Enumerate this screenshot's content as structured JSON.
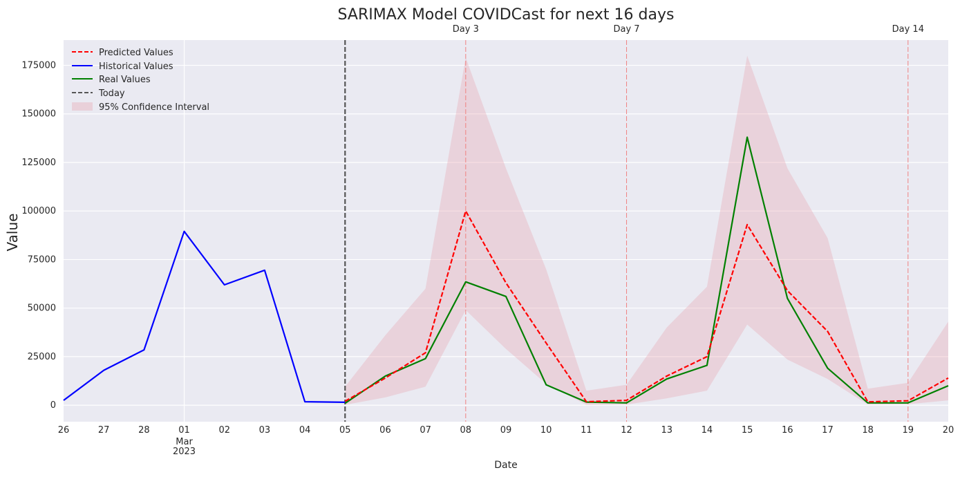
{
  "chart_data": {
    "type": "line",
    "title": "SARIMAX Model COVIDCast for next 16 days",
    "xlabel": "Date",
    "ylabel": "Value",
    "x_ticks": [
      "26",
      "27",
      "28",
      "01",
      "02",
      "03",
      "04",
      "05",
      "06",
      "07",
      "08",
      "09",
      "10",
      "11",
      "12",
      "13",
      "14",
      "15",
      "16",
      "17",
      "18",
      "19",
      "20"
    ],
    "x_tick_sublabel": {
      "index": 3,
      "lines": [
        "Mar",
        "2023"
      ]
    },
    "ylim": [
      -8500,
      188000
    ],
    "y_ticks": [
      0,
      25000,
      50000,
      75000,
      100000,
      125000,
      150000,
      175000
    ],
    "historical": {
      "name": "Historical Values",
      "color": "#0000ff",
      "x": [
        0,
        1,
        2,
        3,
        4,
        5,
        6,
        7
      ],
      "y": [
        2500,
        18000,
        28500,
        89500,
        62000,
        69500,
        1800,
        1500
      ]
    },
    "predicted": {
      "name": "Predicted Values",
      "color": "#ff0000",
      "x": [
        7,
        8,
        9,
        10,
        11,
        12,
        13,
        14,
        15,
        16,
        17,
        18,
        19,
        20,
        21,
        22
      ],
      "y": [
        2000,
        14000,
        27000,
        100000,
        63000,
        32000,
        1800,
        2500,
        15000,
        25000,
        93000,
        59000,
        38000,
        1700,
        2300,
        14000
      ]
    },
    "real": {
      "name": "Real Values",
      "color": "#008000",
      "x": [
        7,
        8,
        9,
        10,
        11,
        12,
        13,
        14,
        15,
        16,
        17,
        18,
        19,
        20,
        21,
        22
      ],
      "y": [
        1000,
        15000,
        24000,
        63500,
        56000,
        10500,
        1600,
        1200,
        13500,
        20500,
        138000,
        55000,
        19000,
        1200,
        1200,
        10000
      ]
    },
    "confidence": {
      "name": "95% Confidence Interval",
      "color": "#e8a0ad",
      "x": [
        7,
        8,
        9,
        10,
        11,
        12,
        13,
        14,
        15,
        16,
        17,
        18,
        19,
        20,
        21,
        22
      ],
      "lower": [
        200,
        4000,
        9500,
        49000,
        29000,
        11000,
        200,
        300,
        3500,
        7500,
        41500,
        23500,
        13500,
        300,
        500,
        2500
      ],
      "upper": [
        9500,
        36000,
        60000,
        179000,
        122000,
        70000,
        7500,
        10500,
        40000,
        61000,
        180000,
        122000,
        86000,
        8500,
        11500,
        43000
      ]
    },
    "today": {
      "name": "Today",
      "x": 7
    },
    "day_markers": [
      {
        "label": "Day 3",
        "x": 10
      },
      {
        "label": "Day 7",
        "x": 14
      },
      {
        "label": "Day 14",
        "x": 21
      }
    ],
    "grid": true,
    "legend_position": "top-left",
    "colors": {
      "background": "#eaeaf2",
      "grid": "#ffffff",
      "today": "#555555",
      "marker": "#f08080"
    }
  }
}
